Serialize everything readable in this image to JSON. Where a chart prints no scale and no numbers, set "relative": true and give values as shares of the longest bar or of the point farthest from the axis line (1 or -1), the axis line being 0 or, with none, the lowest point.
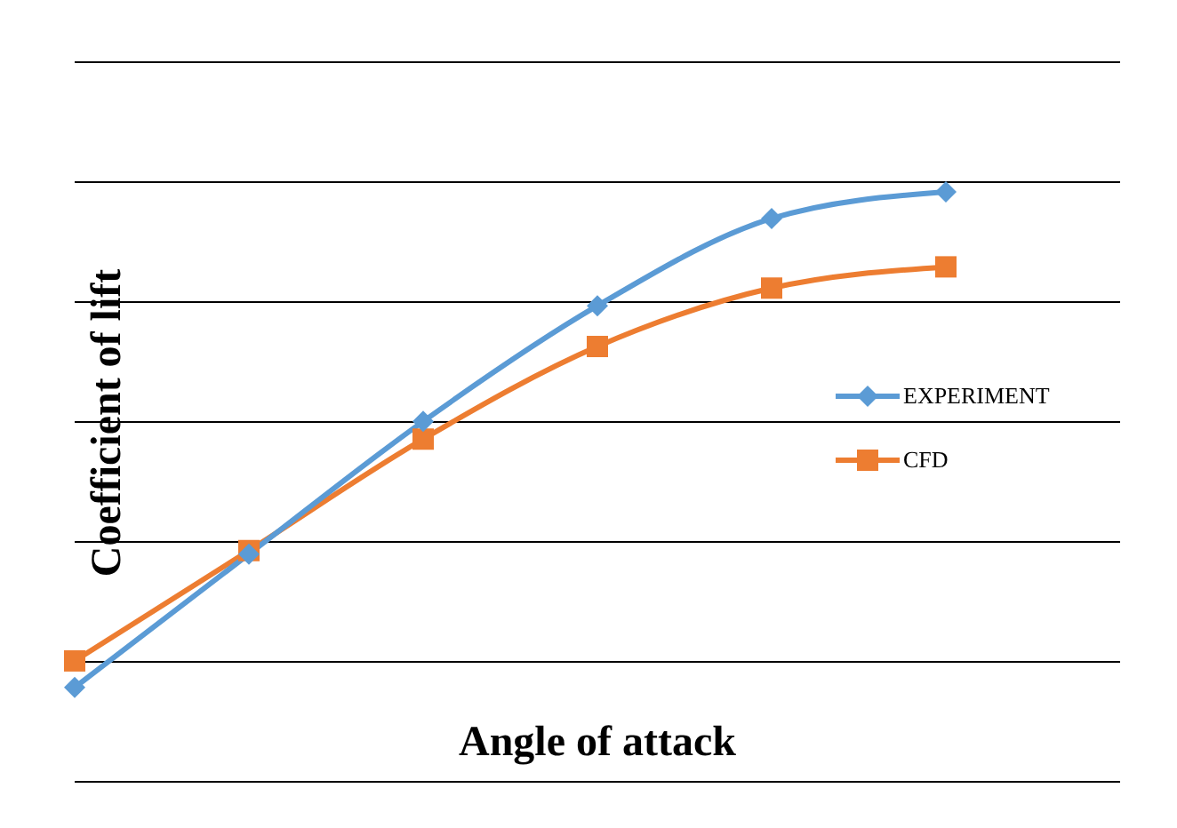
{
  "chart_data": {
    "type": "line",
    "relative": true,
    "xlabel": "Angle of attack",
    "ylabel": "Coefficient of lift",
    "categories": [
      null,
      null,
      null,
      null,
      null,
      null
    ],
    "grid": "y",
    "legend": "right",
    "series": [
      {
        "name": "EXPERIMENT",
        "color": "#5b9bd5",
        "marker": "diamond",
        "values": [
          0.16,
          0.386,
          0.611,
          0.807,
          0.955,
          1
        ]
      },
      {
        "name": "CFD",
        "color": "#ed7d31",
        "marker": "square",
        "values": [
          0.205,
          0.392,
          0.581,
          0.738,
          0.837,
          0.873
        ]
      }
    ]
  }
}
